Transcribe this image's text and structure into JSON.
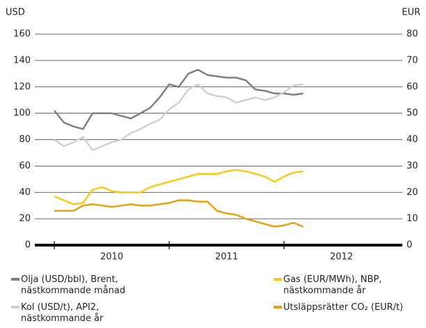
{
  "chart_data": {
    "type": "line",
    "y_label": "USD",
    "y2_label": "EUR",
    "xlim": [
      2009.83,
      2013.03
    ],
    "xticks": [
      2010,
      2011,
      2012
    ],
    "ylim": [
      0,
      160
    ],
    "yticks": [
      0,
      20,
      40,
      60,
      80,
      100,
      120,
      140,
      160
    ],
    "y2lim": [
      0,
      80
    ],
    "y2ticks": [
      0,
      10,
      20,
      30,
      40,
      50,
      60,
      70,
      80
    ],
    "grid": true,
    "x": [
      2010.0,
      2010.083,
      2010.167,
      2010.25,
      2010.333,
      2010.417,
      2010.5,
      2010.583,
      2010.667,
      2010.75,
      2010.833,
      2010.917,
      2011.0,
      2011.083,
      2011.167,
      2011.25,
      2011.333,
      2011.417,
      2011.5,
      2011.583,
      2011.667,
      2011.75,
      2011.833,
      2011.917,
      2012.0,
      2012.083,
      2012.167
    ],
    "series": [
      {
        "name": "Olja (USD/bbl), Brent,\nnästkommande månad",
        "color": "#7f7f7f",
        "axis": "y",
        "values": [
          102,
          93,
          90,
          88,
          100,
          100,
          100,
          98,
          96,
          100,
          104,
          112,
          122,
          120,
          130,
          133,
          129,
          128,
          127,
          127,
          125,
          118,
          117,
          115,
          115,
          114,
          115
        ]
      },
      {
        "name": "Kol (USD/t), API2,\nnästkommande år",
        "color": "#d0d0d0",
        "axis": "y",
        "values": [
          80,
          75,
          78,
          82,
          72,
          75,
          78,
          80,
          85,
          88,
          92,
          95,
          103,
          108,
          118,
          122,
          115,
          113,
          112,
          108,
          110,
          112,
          110,
          112,
          116,
          121,
          122
        ]
      },
      {
        "name": "Gas (EUR/MWh), NBP,\nnästkommande år",
        "color": "#f7cb15",
        "axis": "y2",
        "values": [
          18.5,
          17,
          15.5,
          16,
          21,
          22,
          20.5,
          20,
          20,
          20,
          22,
          23,
          24,
          25,
          26,
          27,
          27,
          27,
          28,
          28.5,
          28,
          27,
          26,
          24,
          26,
          27.5,
          28
        ]
      },
      {
        "name": "Utsläppsrätter CO₂ (EUR/t)",
        "color": "#e9a00f",
        "axis": "y2",
        "values": [
          13,
          13,
          13,
          15,
          15.5,
          15,
          14.5,
          15,
          15.5,
          15,
          15,
          15.5,
          16,
          17,
          17,
          16.5,
          16.5,
          13,
          12,
          11.5,
          10,
          9,
          8,
          7,
          7.5,
          8.5,
          7
        ]
      }
    ]
  }
}
